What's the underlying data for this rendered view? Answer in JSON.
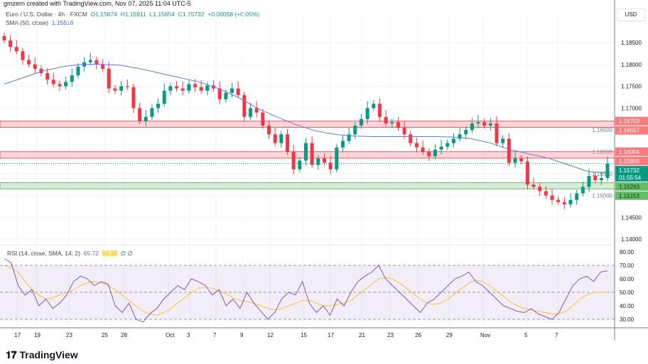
{
  "header": {
    "created": "gmzern created with TradingView.com, Nov 07, 2025 11:04 UTC-5"
  },
  "legend": {
    "symbol": "Euro / U.S. Dollar · 4h · FXCM",
    "open": "O1.15674",
    "high": "H1.15911",
    "low": "L1.15654",
    "close": "C1.15732",
    "change": "+0.00058 (+0.05%)",
    "sma_label": "SMA (50, close)",
    "sma_value": "1.15516"
  },
  "rsi_legend": {
    "label": "RSI (14, close, SMA, 14, 2)",
    "rsi": "65.72",
    "rsi_sma": "50.33",
    "extra1": "∅",
    "extra2": "∅"
  },
  "currency": "USD",
  "countdown": "01:55:54",
  "footer": {
    "logo": "TradingView"
  },
  "colors": {
    "up": "#089981",
    "down": "#f23645",
    "sma": "#5b7bd6",
    "rsi": "#7e57c2",
    "rsi_sma": "#fbc02d",
    "resistance": "#f7a4a9",
    "support": "#a5d6a7"
  },
  "chart_data": {
    "type": "candlestick",
    "price_ticks": [
      "1.18500",
      "1.18000",
      "1.17500",
      "1.17000",
      "1.16500",
      "1.16000",
      "1.15500",
      "1.15000",
      "1.14500",
      "1.14000"
    ],
    "ylim": [
      1.1375,
      1.1915
    ],
    "closes": [
      1.1855,
      1.184,
      1.183,
      1.181,
      1.18,
      1.179,
      1.178,
      1.1765,
      1.1755,
      1.175,
      1.176,
      1.1775,
      1.1795,
      1.1805,
      1.181,
      1.18,
      1.179,
      1.1745,
      1.174,
      1.175,
      1.1748,
      1.17,
      1.167,
      1.168,
      1.17,
      1.171,
      1.174,
      1.175,
      1.1745,
      1.174,
      1.1755,
      1.1748,
      1.174,
      1.1752,
      1.1745,
      1.172,
      1.1735,
      1.1745,
      1.173,
      1.168,
      1.17,
      1.169,
      1.166,
      1.164,
      1.162,
      1.164,
      1.16,
      1.156,
      1.158,
      1.162,
      1.157,
      1.1585,
      1.1575,
      1.156,
      1.161,
      1.1625,
      1.164,
      1.166,
      1.1675,
      1.17,
      1.171,
      1.168,
      1.1665,
      1.1668,
      1.1655,
      1.164,
      1.162,
      1.161,
      1.16,
      1.159,
      1.1605,
      1.1612,
      1.162,
      1.163,
      1.164,
      1.165,
      1.1665,
      1.1668,
      1.166,
      1.1665,
      1.162,
      1.163,
      1.1575,
      1.1585,
      1.1578,
      1.1525,
      1.152,
      1.151,
      1.15,
      1.149,
      1.1485,
      1.148,
      1.149,
      1.1505,
      1.152,
      1.1545,
      1.1535,
      1.154,
      1.1573
    ],
    "sma": [
      1.1755,
      1.177,
      1.1785,
      1.1795,
      1.18,
      1.18,
      1.1798,
      1.179,
      1.178,
      1.177,
      1.176,
      1.1745,
      1.1725,
      1.17,
      1.168,
      1.1662,
      1.1648,
      1.164,
      1.1636,
      1.1635,
      1.1635,
      1.1635,
      1.1635,
      1.1634,
      1.163,
      1.162,
      1.1605,
      1.1595,
      1.1585,
      1.157,
      1.1555,
      1.1552
    ],
    "current_price": "1.15732",
    "zones": [
      {
        "kind": "resistance",
        "top": "1.16703",
        "bottom": "1.16557"
      },
      {
        "kind": "resistance",
        "top": "1.16004",
        "bottom": "1.15855"
      },
      {
        "kind": "support",
        "top": "1.15293",
        "bottom": "1.15153"
      }
    ],
    "x_ticks": [
      "17",
      "19",
      "23",
      "25",
      "28",
      "Oct",
      "3",
      "7",
      "9",
      "12",
      "15",
      "17",
      "21",
      "23",
      "26",
      "29",
      "Nov",
      "5",
      "7"
    ],
    "rsi": {
      "ticks": [
        "80.00",
        "70.00",
        "60.00",
        "50.00",
        "40.00",
        "30.00"
      ],
      "ylim": [
        25,
        82
      ],
      "bands": [
        70,
        50,
        30
      ],
      "values": [
        75,
        72,
        55,
        48,
        52,
        40,
        45,
        38,
        42,
        48,
        58,
        62,
        60,
        55,
        58,
        56,
        40,
        35,
        42,
        30,
        28,
        34,
        38,
        45,
        50,
        55,
        52,
        60,
        58,
        55,
        48,
        52,
        40,
        45,
        38,
        50,
        42,
        36,
        30,
        35,
        45,
        50,
        48,
        58,
        42,
        35,
        40,
        33,
        45,
        40,
        50,
        58,
        62,
        65,
        70,
        60,
        55,
        50,
        45,
        40,
        35,
        42,
        45,
        50,
        55,
        60,
        62,
        65,
        58,
        55,
        50,
        45,
        40,
        38,
        36,
        35,
        38,
        34,
        32,
        30,
        35,
        45,
        55,
        60,
        62,
        58,
        65,
        66
      ],
      "sma": [
        70,
        68,
        65,
        58,
        52,
        48,
        45,
        46,
        48,
        50,
        52,
        55,
        57,
        58,
        57,
        55,
        52,
        48,
        44,
        40,
        36,
        34,
        33,
        35,
        38,
        42,
        46,
        50,
        53,
        54,
        53,
        51,
        49,
        46,
        44,
        43,
        42,
        40,
        38,
        37,
        38,
        40,
        42,
        44,
        44,
        42,
        40,
        40,
        41,
        42,
        44,
        48,
        52,
        56,
        60,
        61,
        60,
        57,
        53,
        49,
        45,
        42,
        41,
        42,
        45,
        49,
        53,
        57,
        59,
        58,
        55,
        51,
        47,
        43,
        40,
        38,
        37,
        36,
        35,
        34,
        34,
        36,
        40,
        45,
        48,
        50,
        50,
        50
      ]
    }
  }
}
